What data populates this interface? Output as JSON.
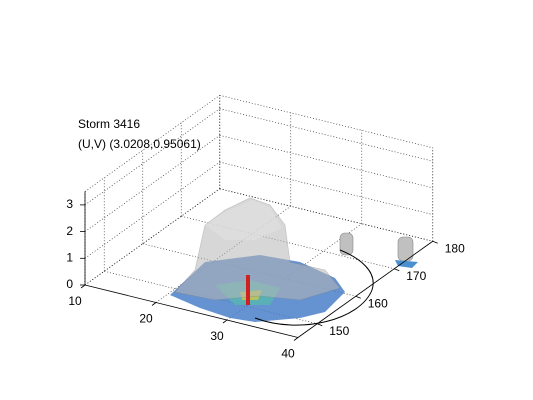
{
  "chart_data": {
    "type": "surface3d",
    "title": [
      "Storm 3416",
      "(U,V) (3.0208,0.95061)"
    ],
    "xlim": [
      10,
      40
    ],
    "ylim": [
      145,
      180
    ],
    "zlim": [
      0,
      3.5
    ],
    "xticks": [
      10,
      20,
      30,
      40
    ],
    "yticks": [
      150,
      160,
      170,
      180
    ],
    "zticks": [
      0,
      1,
      2,
      3
    ],
    "grid": true
  }
}
